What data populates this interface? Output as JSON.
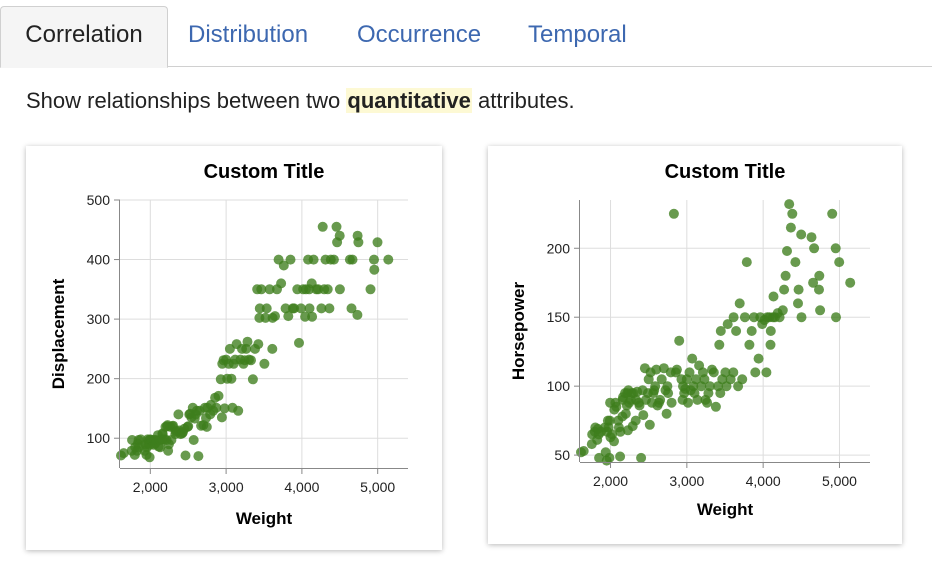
{
  "tabs": [
    {
      "label": "Correlation",
      "active": true
    },
    {
      "label": "Distribution",
      "active": false
    },
    {
      "label": "Occurrence",
      "active": false
    },
    {
      "label": "Temporal",
      "active": false
    }
  ],
  "description": {
    "before": "Show relationships between two ",
    "highlight": "quantitative",
    "after": " attributes."
  },
  "colors": {
    "point": "#3e7e1c",
    "grid": "#dddddd",
    "axis": "#888888",
    "tab_link": "#3d68b0",
    "highlight_bg": "#fdf9d4"
  },
  "chart_data": [
    {
      "type": "scatter",
      "title": "Custom Title",
      "xlabel": "Weight",
      "ylabel": "Displacement",
      "xlim": [
        1600,
        5400
      ],
      "ylim": [
        50,
        500
      ],
      "x_ticks": [
        2000,
        3000,
        4000,
        5000
      ],
      "x_tick_labels": [
        "2,000",
        "3,000",
        "4,000",
        "5,000"
      ],
      "y_ticks": [
        100,
        200,
        300,
        400,
        500
      ],
      "y_tick_labels": [
        "100",
        "200",
        "300",
        "400",
        "500"
      ],
      "grid": true,
      "points": [
        [
          1613,
          71
        ],
        [
          1649,
          75
        ],
        [
          1755,
          79
        ],
        [
          1760,
          97
        ],
        [
          1795,
          72
        ],
        [
          1800,
          85
        ],
        [
          1825,
          79
        ],
        [
          1835,
          91
        ],
        [
          1845,
          97
        ],
        [
          1850,
          85
        ],
        [
          1875,
          98
        ],
        [
          1925,
          79
        ],
        [
          1937,
          90
        ],
        [
          1950,
          72
        ],
        [
          1955,
          85
        ],
        [
          1965,
          98
        ],
        [
          1975,
          91
        ],
        [
          1985,
          97
        ],
        [
          1990,
          68
        ],
        [
          1995,
          89
        ],
        [
          2000,
          98
        ],
        [
          2020,
          97
        ],
        [
          2045,
          89
        ],
        [
          2050,
          97
        ],
        [
          2065,
          91
        ],
        [
          2075,
          97
        ],
        [
          2100,
          105
        ],
        [
          2110,
          86
        ],
        [
          2125,
          97
        ],
        [
          2130,
          85
        ],
        [
          2155,
          98
        ],
        [
          2160,
          108
        ],
        [
          2164,
          107
        ],
        [
          2190,
          98
        ],
        [
          2200,
          119
        ],
        [
          2215,
          97
        ],
        [
          2220,
          120
        ],
        [
          2228,
          122
        ],
        [
          2234,
          79
        ],
        [
          2245,
          90
        ],
        [
          2265,
          119
        ],
        [
          2278,
          97
        ],
        [
          2290,
          120
        ],
        [
          2300,
          121
        ],
        [
          2330,
          107
        ],
        [
          2335,
          111
        ],
        [
          2350,
          112
        ],
        [
          2370,
          140
        ],
        [
          2380,
          113
        ],
        [
          2400,
          107
        ],
        [
          2420,
          108
        ],
        [
          2430,
          110
        ],
        [
          2450,
          116
        ],
        [
          2464,
          71
        ],
        [
          2490,
          119
        ],
        [
          2500,
          120
        ],
        [
          2515,
          140
        ],
        [
          2525,
          141
        ],
        [
          2542,
          135
        ],
        [
          2560,
          151
        ],
        [
          2572,
          97
        ],
        [
          2585,
          133
        ],
        [
          2600,
          140
        ],
        [
          2615,
          146
        ],
        [
          2635,
          70
        ],
        [
          2650,
          146
        ],
        [
          2670,
          121
        ],
        [
          2700,
          122
        ],
        [
          2720,
          151
        ],
        [
          2735,
          134
        ],
        [
          2745,
          119
        ],
        [
          2755,
          151
        ],
        [
          2790,
          140
        ],
        [
          2800,
          156
        ],
        [
          2830,
          146
        ],
        [
          2855,
          168
        ],
        [
          2870,
          151
        ],
        [
          2900,
          171
        ],
        [
          2930,
          199
        ],
        [
          2945,
          135
        ],
        [
          2950,
          225
        ],
        [
          2965,
          231
        ],
        [
          2980,
          150
        ],
        [
          3000,
          232
        ],
        [
          3015,
          200
        ],
        [
          3035,
          225
        ],
        [
          3050,
          250
        ],
        [
          3070,
          200
        ],
        [
          3085,
          151
        ],
        [
          3100,
          225
        ],
        [
          3120,
          232
        ],
        [
          3139,
          258
        ],
        [
          3160,
          146
        ],
        [
          3190,
          232
        ],
        [
          3210,
          250
        ],
        [
          3230,
          225
        ],
        [
          3245,
          231
        ],
        [
          3265,
          250
        ],
        [
          3282,
          262
        ],
        [
          3302,
          232
        ],
        [
          3329,
          231
        ],
        [
          3353,
          199
        ],
        [
          3381,
          250
        ],
        [
          3410,
          350
        ],
        [
          3425,
          258
        ],
        [
          3439,
          302
        ],
        [
          3445,
          318
        ],
        [
          3465,
          350
        ],
        [
          3505,
          225
        ],
        [
          3520,
          302
        ],
        [
          3535,
          318
        ],
        [
          3574,
          350
        ],
        [
          3609,
          250
        ],
        [
          3613,
          302
        ],
        [
          3645,
          305
        ],
        [
          3672,
          350
        ],
        [
          3693,
          400
        ],
        [
          3725,
          360
        ],
        [
          3761,
          390
        ],
        [
          3785,
          318
        ],
        [
          3820,
          305
        ],
        [
          3850,
          400
        ],
        [
          3880,
          318
        ],
        [
          3897,
          318
        ],
        [
          3940,
          350
        ],
        [
          3962,
          260
        ],
        [
          3988,
          318
        ],
        [
          4017,
          350
        ],
        [
          4042,
          304
        ],
        [
          4054,
          350
        ],
        [
          4082,
          400
        ],
        [
          4096,
          350
        ],
        [
          4100,
          318
        ],
        [
          4129,
          360
        ],
        [
          4135,
          304
        ],
        [
          4154,
          400
        ],
        [
          4190,
          350
        ],
        [
          4215,
          350
        ],
        [
          4257,
          318
        ],
        [
          4274,
          455
        ],
        [
          4294,
          350
        ],
        [
          4312,
          400
        ],
        [
          4341,
          350
        ],
        [
          4363,
          318
        ],
        [
          4382,
          400
        ],
        [
          4422,
          400
        ],
        [
          4457,
          455
        ],
        [
          4464,
          429
        ],
        [
          4499,
          440
        ],
        [
          4502,
          350
        ],
        [
          4633,
          400
        ],
        [
          4654,
          318
        ],
        [
          4668,
          400
        ],
        [
          4732,
          307
        ],
        [
          4735,
          440
        ],
        [
          4746,
          429
        ],
        [
          4905,
          350
        ],
        [
          4951,
          400
        ],
        [
          4955,
          383
        ],
        [
          4997,
          429
        ],
        [
          5140,
          400
        ]
      ]
    },
    {
      "type": "scatter",
      "title": "Custom Title",
      "xlabel": "Weight",
      "ylabel": "Horsepower",
      "xlim": [
        1600,
        5400
      ],
      "ylim": [
        45,
        235
      ],
      "x_ticks": [
        2000,
        3000,
        4000,
        5000
      ],
      "x_tick_labels": [
        "2,000",
        "3,000",
        "4,000",
        "5,000"
      ],
      "y_ticks": [
        50,
        100,
        150,
        200
      ],
      "y_tick_labels": [
        "50",
        "100",
        "150",
        "200"
      ],
      "grid": true,
      "points": [
        [
          1613,
          52
        ],
        [
          1649,
          53
        ],
        [
          1755,
          58
        ],
        [
          1760,
          65
        ],
        [
          1795,
          67
        ],
        [
          1800,
          70
        ],
        [
          1825,
          61
        ],
        [
          1835,
          69
        ],
        [
          1845,
          65
        ],
        [
          1850,
          48
        ],
        [
          1875,
          67
        ],
        [
          1925,
          70
        ],
        [
          1937,
          52
        ],
        [
          1950,
          46
        ],
        [
          1955,
          67
        ],
        [
          1965,
          75
        ],
        [
          1975,
          70
        ],
        [
          1985,
          48
        ],
        [
          1990,
          75
        ],
        [
          1995,
          88
        ],
        [
          2000,
          63
        ],
        [
          2020,
          65
        ],
        [
          2045,
          60
        ],
        [
          2050,
          83
        ],
        [
          2065,
          88
        ],
        [
          2075,
          85
        ],
        [
          2100,
          75
        ],
        [
          2110,
          70
        ],
        [
          2125,
          49
        ],
        [
          2130,
          67
        ],
        [
          2155,
          78
        ],
        [
          2160,
          90
        ],
        [
          2164,
          92
        ],
        [
          2190,
          95
        ],
        [
          2200,
          80
        ],
        [
          2215,
          86
        ],
        [
          2220,
          95
        ],
        [
          2228,
          68
        ],
        [
          2234,
          97
        ],
        [
          2245,
          88
        ],
        [
          2265,
          90
        ],
        [
          2278,
          95
        ],
        [
          2290,
          71
        ],
        [
          2300,
          95
        ],
        [
          2330,
          75
        ],
        [
          2335,
          90
        ],
        [
          2350,
          96
        ],
        [
          2370,
          88
        ],
        [
          2380,
          86
        ],
        [
          2400,
          48
        ],
        [
          2420,
          97
        ],
        [
          2430,
          79
        ],
        [
          2450,
          113
        ],
        [
          2464,
          90
        ],
        [
          2490,
          95
        ],
        [
          2500,
          105
        ],
        [
          2515,
          72
        ],
        [
          2525,
          110
        ],
        [
          2542,
          88
        ],
        [
          2560,
          95
        ],
        [
          2572,
          97
        ],
        [
          2585,
          100
        ],
        [
          2600,
          112
        ],
        [
          2615,
          86
        ],
        [
          2635,
          88
        ],
        [
          2650,
          90
        ],
        [
          2670,
          105
        ],
        [
          2700,
          113
        ],
        [
          2720,
          97
        ],
        [
          2735,
          80
        ],
        [
          2745,
          100
        ],
        [
          2755,
          95
        ],
        [
          2790,
          110
        ],
        [
          2800,
          88
        ],
        [
          2830,
          225
        ],
        [
          2855,
          110
        ],
        [
          2870,
          112
        ],
        [
          2900,
          133
        ],
        [
          2930,
          105
        ],
        [
          2945,
          90
        ],
        [
          2950,
          100
        ],
        [
          2965,
          95
        ],
        [
          2980,
          98
        ],
        [
          3000,
          105
        ],
        [
          3015,
          88
        ],
        [
          3035,
          110
        ],
        [
          3050,
          97
        ],
        [
          3070,
          120
        ],
        [
          3085,
          100
        ],
        [
          3100,
          95
        ],
        [
          3120,
          105
        ],
        [
          3139,
          90
        ],
        [
          3160,
          115
        ],
        [
          3190,
          100
        ],
        [
          3210,
          110
        ],
        [
          3230,
          105
        ],
        [
          3245,
          90
        ],
        [
          3265,
          88
        ],
        [
          3282,
          95
        ],
        [
          3302,
          100
        ],
        [
          3329,
          112
        ],
        [
          3353,
          110
        ],
        [
          3381,
          85
        ],
        [
          3410,
          100
        ],
        [
          3425,
          130
        ],
        [
          3439,
          95
        ],
        [
          3445,
          140
        ],
        [
          3465,
          105
        ],
        [
          3505,
          110
        ],
        [
          3520,
          100
        ],
        [
          3535,
          145
        ],
        [
          3574,
          105
        ],
        [
          3609,
          110
        ],
        [
          3613,
          150
        ],
        [
          3645,
          140
        ],
        [
          3672,
          100
        ],
        [
          3693,
          160
        ],
        [
          3725,
          105
        ],
        [
          3761,
          150
        ],
        [
          3785,
          190
        ],
        [
          3820,
          130
        ],
        [
          3850,
          140
        ],
        [
          3880,
          150
        ],
        [
          3897,
          110
        ],
        [
          3940,
          120
        ],
        [
          3962,
          150
        ],
        [
          3988,
          145
        ],
        [
          4017,
          148
        ],
        [
          4042,
          110
        ],
        [
          4054,
          150
        ],
        [
          4082,
          150
        ],
        [
          4096,
          130
        ],
        [
          4100,
          140
        ],
        [
          4129,
          150
        ],
        [
          4135,
          165
        ],
        [
          4154,
          150
        ],
        [
          4190,
          153
        ],
        [
          4215,
          150
        ],
        [
          4257,
          155
        ],
        [
          4274,
          170
        ],
        [
          4294,
          180
        ],
        [
          4312,
          198
        ],
        [
          4341,
          232
        ],
        [
          4363,
          215
        ],
        [
          4382,
          225
        ],
        [
          4422,
          190
        ],
        [
          4457,
          160
        ],
        [
          4464,
          170
        ],
        [
          4499,
          210
        ],
        [
          4502,
          150
        ],
        [
          4633,
          208
        ],
        [
          4654,
          175
        ],
        [
          4668,
          200
        ],
        [
          4732,
          170
        ],
        [
          4735,
          180
        ],
        [
          4746,
          155
        ],
        [
          4905,
          225
        ],
        [
          4951,
          200
        ],
        [
          4955,
          150
        ],
        [
          4997,
          190
        ],
        [
          5140,
          175
        ]
      ]
    }
  ]
}
